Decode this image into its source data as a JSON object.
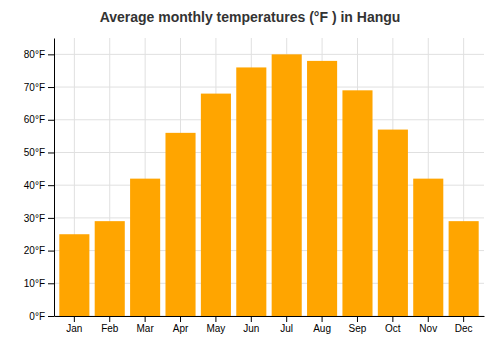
{
  "chart_data": {
    "type": "bar",
    "title": "Average monthly temperatures (°F ) in Hangu",
    "categories": [
      "Jan",
      "Feb",
      "Mar",
      "Apr",
      "May",
      "Jun",
      "Jul",
      "Aug",
      "Sep",
      "Oct",
      "Nov",
      "Dec"
    ],
    "values": [
      25,
      29,
      42,
      56,
      68,
      76,
      80,
      78,
      69,
      57,
      42,
      29
    ],
    "color": "#FFA500",
    "ylim": [
      0,
      85
    ],
    "yticks": [
      {
        "value": 0,
        "label": "0°F"
      },
      {
        "value": 10,
        "label": "10°F"
      },
      {
        "value": 20,
        "label": "20°F"
      },
      {
        "value": 30,
        "label": "30°F"
      },
      {
        "value": 40,
        "label": "40°F"
      },
      {
        "value": 50,
        "label": "50°F"
      },
      {
        "value": 60,
        "label": "60°F"
      },
      {
        "value": 70,
        "label": "70°F"
      },
      {
        "value": 80,
        "label": "80°F"
      }
    ],
    "grid": true
  }
}
